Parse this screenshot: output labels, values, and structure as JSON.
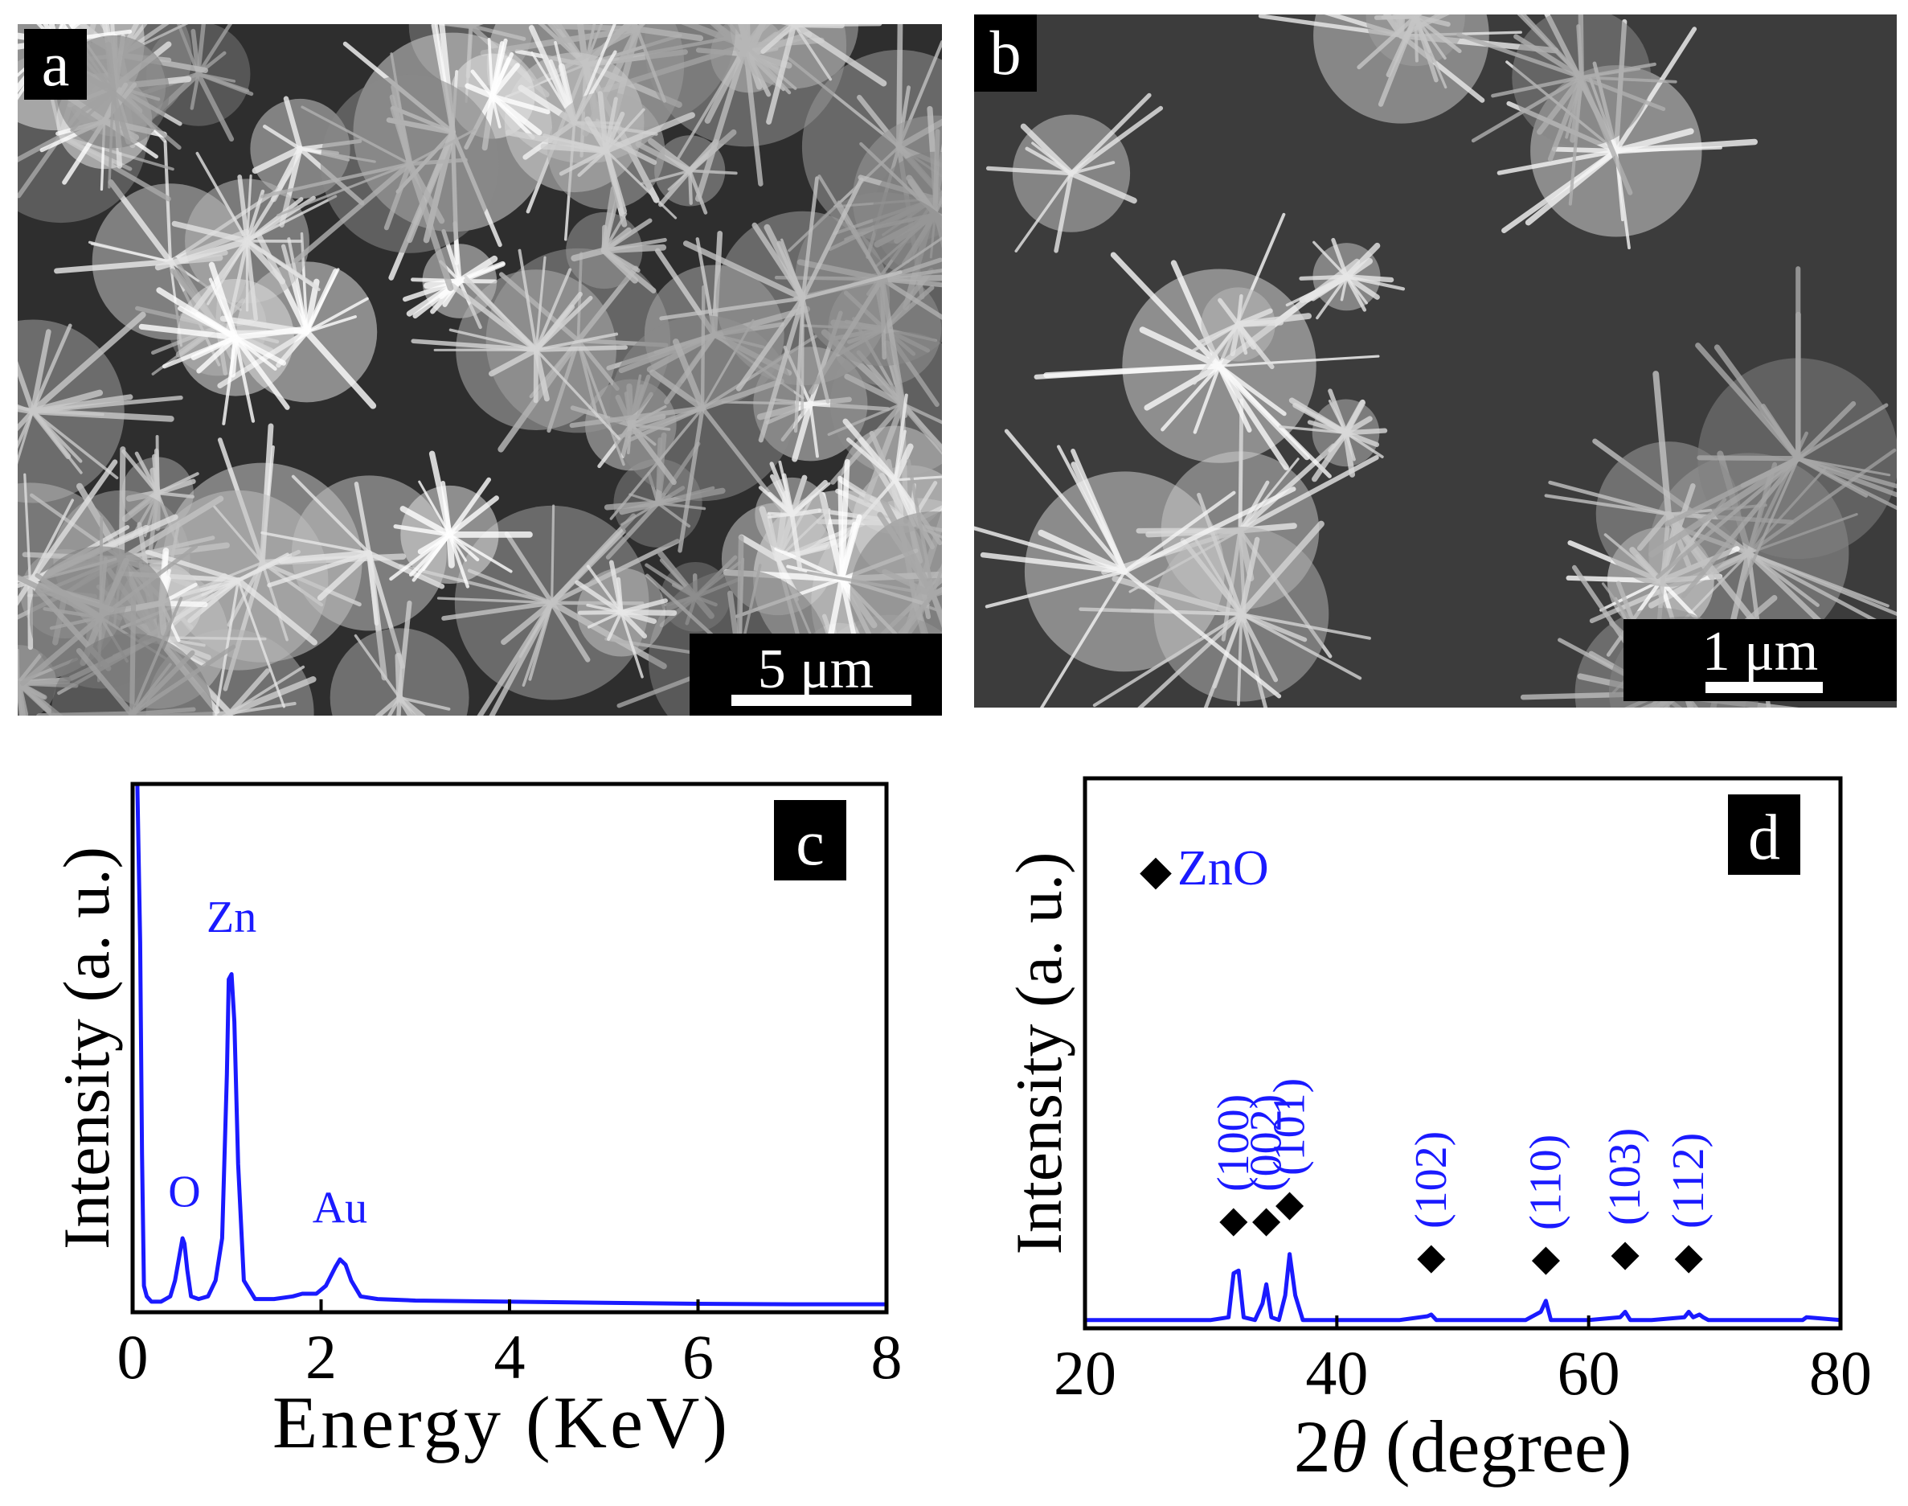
{
  "panels": {
    "a": {
      "label": "a",
      "scale": "5 μm"
    },
    "b": {
      "label": "b",
      "scale": "1 μm"
    }
  },
  "colors": {
    "series": "#1a1aff",
    "annotation": "#1a1aff",
    "axis": "#000000"
  },
  "chart_data": [
    {
      "type": "line",
      "panel_label": "c",
      "xlabel": "Energy (KeV)",
      "ylabel": "Intensity (a. u.)",
      "xlim": [
        0,
        8
      ],
      "ylim": [
        0,
        100
      ],
      "xticks": [
        "0",
        "2",
        "4",
        "6",
        "8"
      ],
      "x": [
        0.0,
        0.05,
        0.08,
        0.1,
        0.12,
        0.15,
        0.2,
        0.3,
        0.4,
        0.45,
        0.5,
        0.53,
        0.55,
        0.58,
        0.62,
        0.7,
        0.8,
        0.88,
        0.95,
        1.0,
        1.02,
        1.05,
        1.08,
        1.12,
        1.18,
        1.3,
        1.5,
        1.7,
        1.8,
        1.95,
        2.05,
        2.15,
        2.2,
        2.26,
        2.32,
        2.42,
        2.6,
        3.0,
        4.0,
        5.0,
        6.0,
        7.0,
        8.0
      ],
      "y": [
        100,
        100,
        70,
        30,
        5,
        3,
        2,
        2,
        3,
        6,
        11,
        14,
        13,
        8,
        3,
        2.5,
        3,
        6,
        14,
        45,
        63,
        64,
        55,
        28,
        6,
        2.5,
        2.5,
        3,
        3.5,
        3.5,
        5,
        8.5,
        10,
        9,
        6,
        3,
        2.5,
        2.2,
        2,
        1.8,
        1.6,
        1.5,
        1.5
      ],
      "annotations": [
        {
          "text": "O",
          "x": 0.55,
          "y": 20
        },
        {
          "text": "Zn",
          "x": 1.05,
          "y": 72
        },
        {
          "text": "Au",
          "x": 2.2,
          "y": 17
        }
      ]
    },
    {
      "type": "line",
      "panel_label": "d",
      "xlabel": "2θ (degree)",
      "xlabel_parts": {
        "prefix": "2",
        "symbol": "θ",
        "suffix": " (degree)"
      },
      "ylabel": "Intensity (a. u.)",
      "xlim": [
        20,
        80
      ],
      "ylim": [
        0,
        100
      ],
      "xticks": [
        "20",
        "40",
        "60",
        "80"
      ],
      "x": [
        20,
        30,
        31.4,
        31.8,
        32.2,
        32.6,
        33.5,
        34.1,
        34.4,
        34.8,
        35.4,
        35.9,
        36.25,
        36.7,
        37.3,
        45,
        47.2,
        47.5,
        47.9,
        55,
        56.2,
        56.6,
        57.0,
        60,
        62.5,
        62.9,
        63.3,
        65,
        67.6,
        67.95,
        68.3,
        68.8,
        69.1,
        69.5,
        75,
        77,
        77.3,
        80
      ],
      "y": [
        1.5,
        1.5,
        2,
        10,
        10.5,
        2,
        1.5,
        4.5,
        8,
        2,
        1.5,
        6,
        13.5,
        6,
        1.5,
        1.5,
        2.2,
        2.5,
        1.5,
        1.5,
        3,
        5,
        1.5,
        1.5,
        2,
        3,
        1.5,
        1.5,
        2,
        3,
        2,
        2.5,
        2,
        1.5,
        1.5,
        1.5,
        2,
        1.5
      ],
      "legend": {
        "marker": "◆",
        "text": "ZnO",
        "placement": "top-left"
      },
      "peaks": [
        {
          "hkl": "(100)",
          "x": 31.8
        },
        {
          "hkl": "(002)",
          "x": 34.4
        },
        {
          "hkl": "(101)",
          "x": 36.25
        },
        {
          "hkl": "(102)",
          "x": 47.5
        },
        {
          "hkl": "(110)",
          "x": 56.6
        },
        {
          "hkl": "(103)",
          "x": 62.9
        },
        {
          "hkl": "(112)",
          "x": 67.95
        }
      ],
      "peak_marker": "◆"
    }
  ]
}
